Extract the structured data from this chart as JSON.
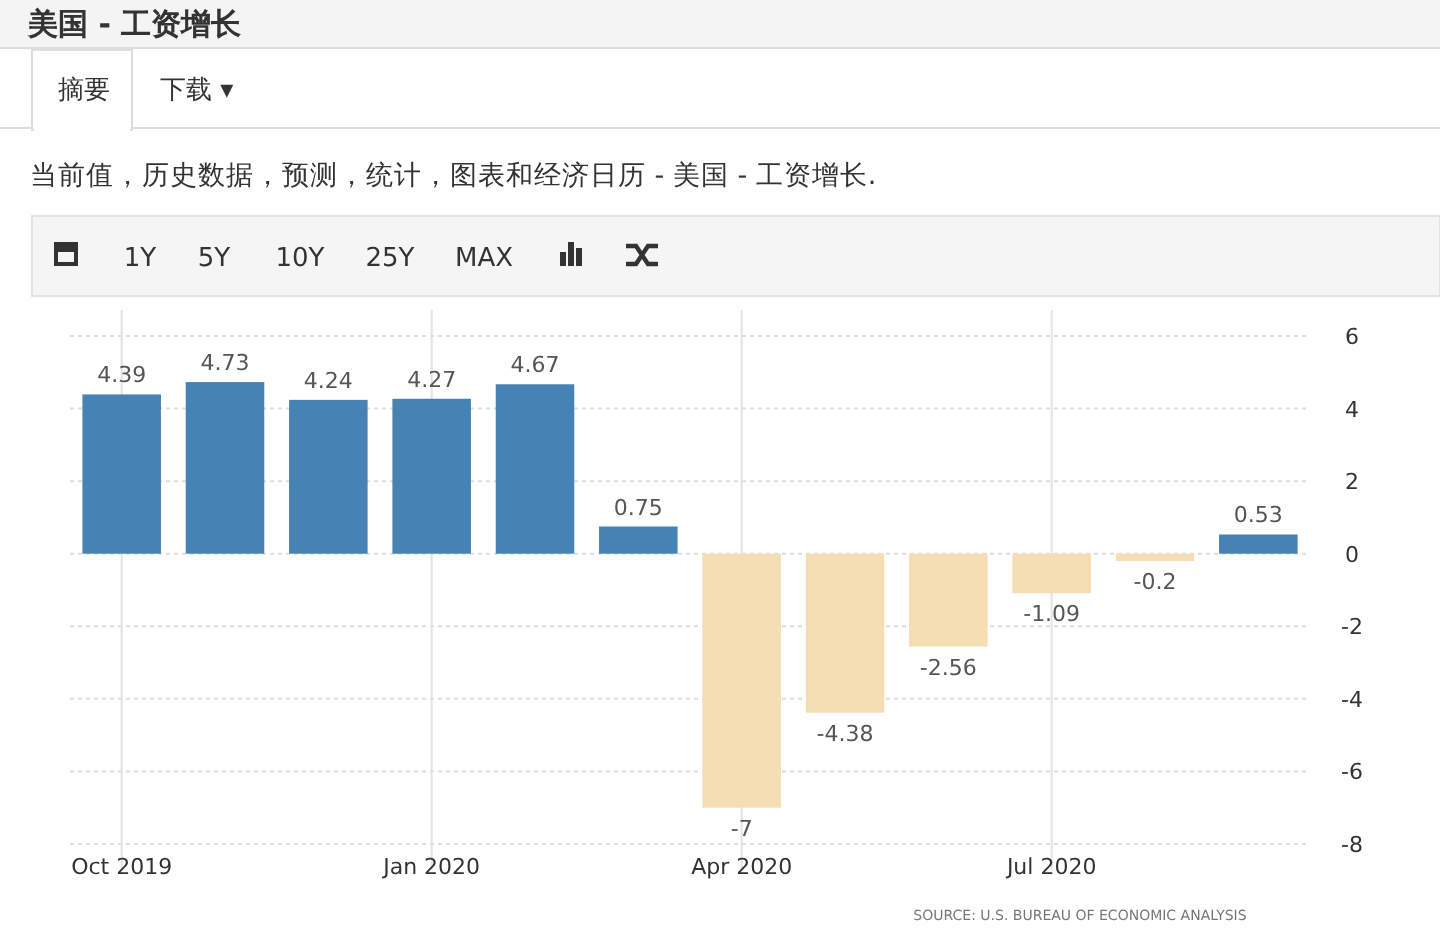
{
  "chart_data": {
    "type": "bar",
    "title": "美国 - 工资增长",
    "subtitle": "当前值，历史数据，预测，统计，图表和经济日历 - 美国 - 工资增长.",
    "annotations": [
      "摘要",
      "下载 ▾",
      "1Y",
      "5Y",
      "10Y",
      "25Y",
      "MAX",
      "SOURCE: U.S. BUREAU OF ECONOMIC ANALYSIS"
    ],
    "categories": [
      "Oct 2019",
      null,
      null,
      "Jan 2020",
      null,
      null,
      "Apr 2020",
      null,
      null,
      "Jul 2020",
      null,
      null
    ],
    "values": [
      4.39,
      4.73,
      4.24,
      4.27,
      4.67,
      0.75,
      -7,
      -4.38,
      -2.56,
      -1.09,
      -0.2,
      0.53
    ],
    "colors": [
      "#4682b4",
      "#4682b4",
      "#4682b4",
      "#4682b4",
      "#4682b4",
      "#4682b4",
      "#f5deb3",
      "#f5deb3",
      "#f5deb3",
      "#f5deb3",
      "#f5deb3",
      "#4682b4"
    ],
    "ylim": [
      -8,
      6
    ],
    "yticks": [
      -8,
      -6,
      -4,
      -2,
      0,
      2,
      4,
      6
    ],
    "grid": true,
    "data_labels": true
  }
}
